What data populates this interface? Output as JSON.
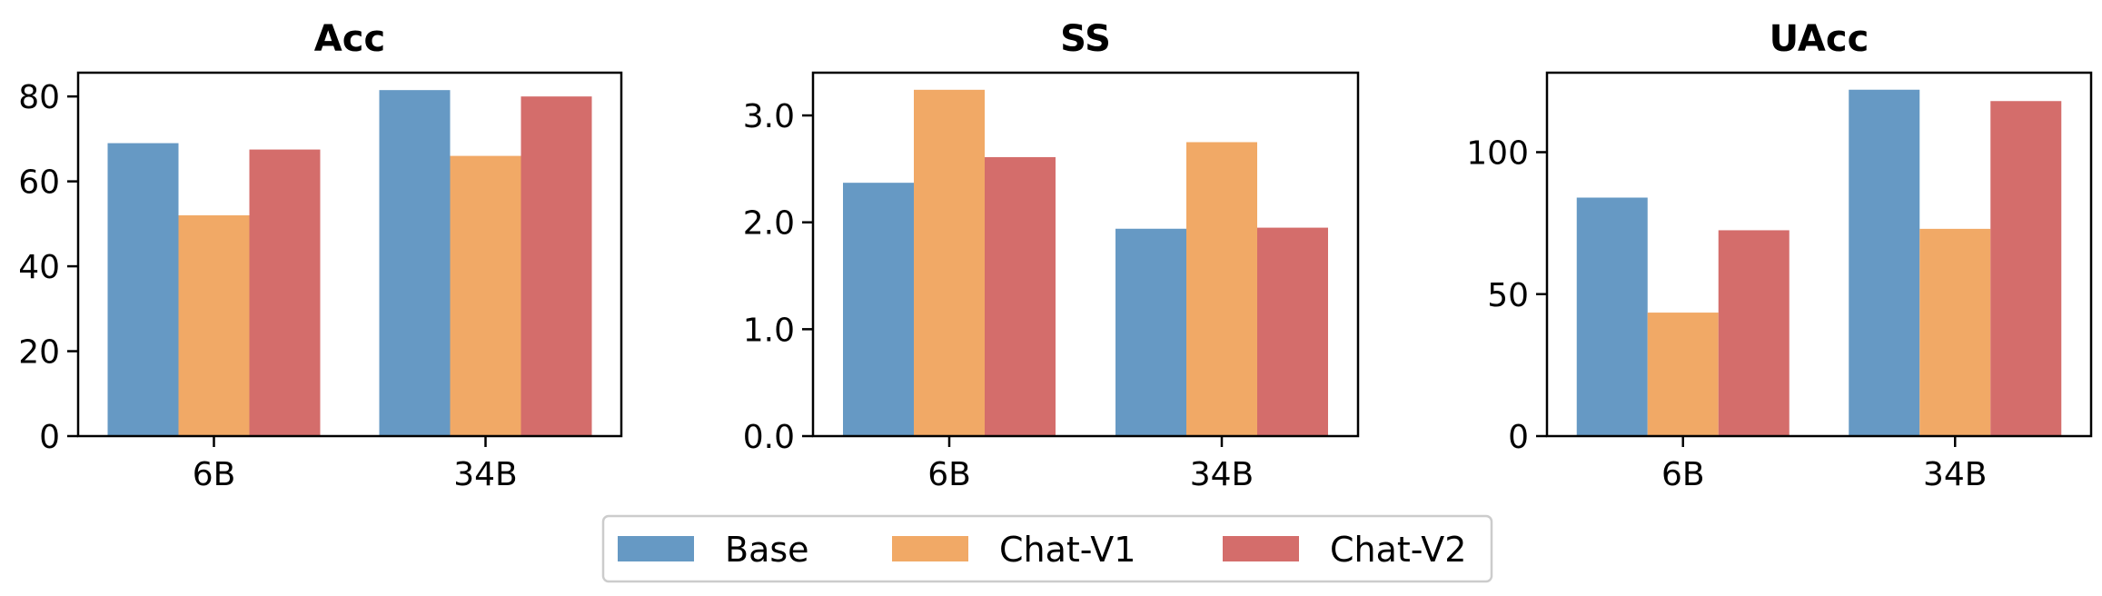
{
  "chart_data": [
    {
      "type": "bar",
      "title": "Acc",
      "categories": [
        "6B",
        "34B"
      ],
      "series": [
        {
          "name": "Base",
          "values": [
            69.0,
            81.5
          ]
        },
        {
          "name": "Chat-V1",
          "values": [
            52.0,
            66.0
          ]
        },
        {
          "name": "Chat-V2",
          "values": [
            67.5,
            80.0
          ]
        }
      ],
      "ylim": [
        0,
        85.6
      ],
      "yticks": [
        0,
        20,
        40,
        60,
        80
      ],
      "ytick_labels": [
        "0",
        "20",
        "40",
        "60",
        "80"
      ],
      "xlabel": "",
      "ylabel": "",
      "grid": false
    },
    {
      "type": "bar",
      "title": "SS",
      "categories": [
        "6B",
        "34B"
      ],
      "series": [
        {
          "name": "Base",
          "values": [
            2.37,
            1.94
          ]
        },
        {
          "name": "Chat-V1",
          "values": [
            3.24,
            2.75
          ]
        },
        {
          "name": "Chat-V2",
          "values": [
            2.61,
            1.95
          ]
        }
      ],
      "ylim": [
        0,
        3.4
      ],
      "yticks": [
        0,
        1,
        2,
        3
      ],
      "ytick_labels": [
        "0.0",
        "1.0",
        "2.0",
        "3.0"
      ],
      "xlabel": "",
      "ylabel": "",
      "grid": false
    },
    {
      "type": "bar",
      "title": "UAcc",
      "categories": [
        "6B",
        "34B"
      ],
      "series": [
        {
          "name": "Base",
          "values": [
            84.0,
            122.0
          ]
        },
        {
          "name": "Chat-V1",
          "values": [
            43.5,
            73.0
          ]
        },
        {
          "name": "Chat-V2",
          "values": [
            72.5,
            118.0
          ]
        }
      ],
      "ylim": [
        0,
        128
      ],
      "yticks": [
        0,
        50,
        100
      ],
      "ytick_labels": [
        "0",
        "50",
        "100"
      ],
      "xlabel": "",
      "ylabel": "",
      "grid": false
    }
  ],
  "legend": {
    "placement": "bottom-center",
    "entries": [
      {
        "name": "Base",
        "color": "#6699c4"
      },
      {
        "name": "Chat-V1",
        "color": "#f1a966"
      },
      {
        "name": "Chat-V2",
        "color": "#d46d6b"
      }
    ]
  },
  "colors": {
    "Base": "#6699c4",
    "Chat-V1": "#f1a966",
    "Chat-V2": "#d46d6b"
  }
}
